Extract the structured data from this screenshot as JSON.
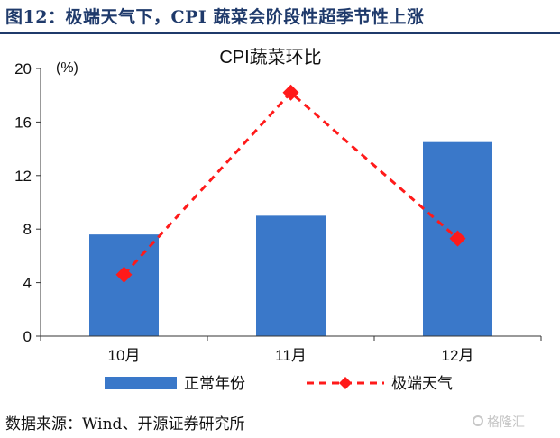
{
  "figure_title": "图12：极端天气下，CPI 蔬菜会阶段性超季节性上涨",
  "source_note": "数据来源：Wind、开源证券研究所",
  "watermark": "格隆汇",
  "chart_data": {
    "type": "bar",
    "title": "CPI蔬菜环比",
    "ylabel": "(%)",
    "categories": [
      "10月",
      "11月",
      "12月"
    ],
    "ylim": [
      0,
      20
    ],
    "yticks": [
      0,
      4,
      8,
      12,
      16,
      20
    ],
    "series": [
      {
        "name": "正常年份",
        "type": "bar",
        "color": "#3a78c9",
        "values": [
          7.6,
          9.0,
          14.5
        ]
      },
      {
        "name": "极端天气",
        "type": "line",
        "style": "dashed",
        "marker": "diamond",
        "color": "#ff1a1a",
        "values": [
          4.6,
          18.2,
          7.3
        ]
      }
    ],
    "legend_position": "bottom",
    "grid": false
  }
}
